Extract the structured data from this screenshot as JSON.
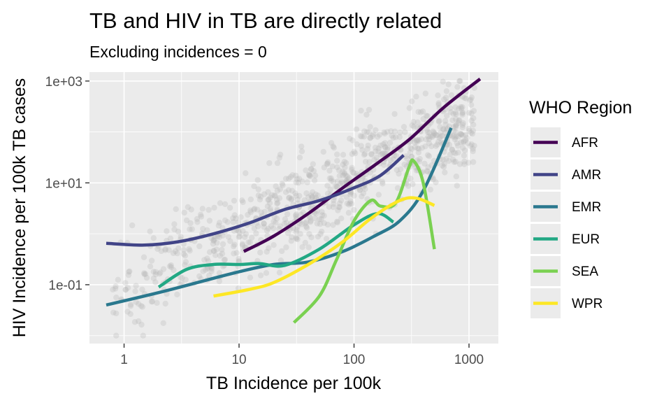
{
  "chart_data": {
    "type": "scatter",
    "title": "TB and HIV in TB are directly related",
    "subtitle": "Excluding incidences = 0",
    "xlabel": "TB Incidence per 100k",
    "ylabel": "HIV Incidence per 100k TB cases",
    "x_scale": "log10",
    "y_scale": "log10",
    "xlim": [
      0.5,
      1800
    ],
    "ylim": [
      0.007,
      1500
    ],
    "x_ticks": [
      1,
      10,
      100,
      1000
    ],
    "x_tick_labels": [
      "1",
      "10",
      "100",
      "1000"
    ],
    "y_ticks": [
      0.1,
      10,
      1000
    ],
    "y_tick_labels": [
      "1e-01",
      "1e+01",
      "1e+03"
    ],
    "grid": true,
    "background": "#ebebeb",
    "point_color": "#b3b3b3",
    "legend": {
      "title": "WHO Region",
      "placement": "right"
    },
    "series": [
      {
        "name": "AFR",
        "color": "#440154",
        "points": [
          [
            11,
            0.45
          ],
          [
            20,
            0.9
          ],
          [
            40,
            2.5
          ],
          [
            80,
            8
          ],
          [
            150,
            22
          ],
          [
            300,
            70
          ],
          [
            600,
            300
          ],
          [
            1250,
            1100
          ]
        ]
      },
      {
        "name": "AMR",
        "color": "#414487",
        "points": [
          [
            0.7,
            0.65
          ],
          [
            1.5,
            0.6
          ],
          [
            3,
            0.7
          ],
          [
            6,
            1.0
          ],
          [
            12,
            1.6
          ],
          [
            25,
            3
          ],
          [
            50,
            4.5
          ],
          [
            100,
            8
          ],
          [
            170,
            14
          ],
          [
            270,
            35
          ]
        ]
      },
      {
        "name": "EMR",
        "color": "#2a788e",
        "points": [
          [
            0.7,
            0.04
          ],
          [
            2,
            0.07
          ],
          [
            5,
            0.12
          ],
          [
            10,
            0.18
          ],
          [
            20,
            0.25
          ],
          [
            40,
            0.28
          ],
          [
            80,
            0.45
          ],
          [
            150,
            0.9
          ],
          [
            250,
            1.8
          ],
          [
            400,
            7
          ],
          [
            700,
            120
          ]
        ]
      },
      {
        "name": "EUR",
        "color": "#22a884",
        "points": [
          [
            2,
            0.09
          ],
          [
            3.5,
            0.2
          ],
          [
            6,
            0.25
          ],
          [
            10,
            0.25
          ],
          [
            15,
            0.26
          ],
          [
            25,
            0.24
          ],
          [
            50,
            0.5
          ],
          [
            100,
            1.5
          ],
          [
            160,
            2.5
          ],
          [
            220,
            1.7
          ]
        ]
      },
      {
        "name": "SEA",
        "color": "#7ad151",
        "points": [
          [
            30,
            0.018
          ],
          [
            50,
            0.06
          ],
          [
            70,
            0.3
          ],
          [
            100,
            1.8
          ],
          [
            140,
            4.5
          ],
          [
            170,
            3.5
          ],
          [
            230,
            4
          ],
          [
            300,
            20
          ],
          [
            330,
            27
          ],
          [
            400,
            10
          ],
          [
            500,
            0.5
          ]
        ]
      },
      {
        "name": "WPR",
        "color": "#fde725",
        "points": [
          [
            6,
            0.06
          ],
          [
            12,
            0.08
          ],
          [
            20,
            0.11
          ],
          [
            40,
            0.25
          ],
          [
            80,
            0.7
          ],
          [
            140,
            2
          ],
          [
            250,
            4.5
          ],
          [
            350,
            5
          ],
          [
            500,
            3.6
          ]
        ]
      }
    ]
  }
}
